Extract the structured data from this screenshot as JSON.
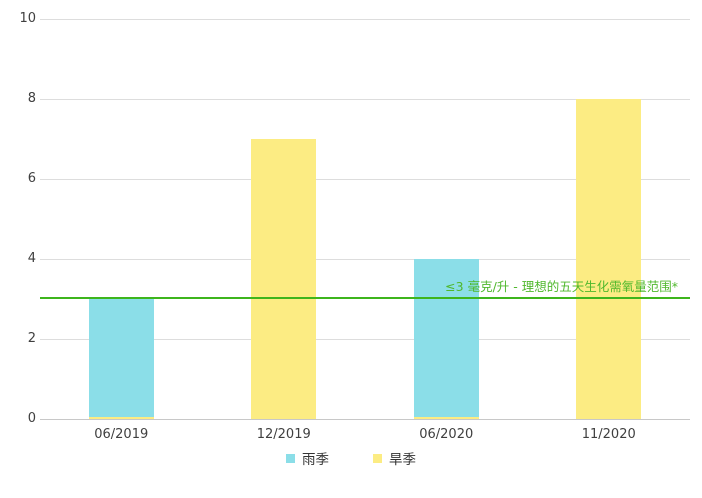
{
  "chart_data": {
    "type": "bar",
    "title": "",
    "xlabel": "",
    "ylabel": "",
    "categories": [
      "06/2019",
      "12/2019",
      "06/2020",
      "11/2020"
    ],
    "series": [
      {
        "name": "雨季",
        "color": "#8BDEE8",
        "values": [
          3,
          null,
          4,
          null
        ]
      },
      {
        "name": "旱季",
        "color": "#FCEC83",
        "values": [
          null,
          7,
          null,
          8
        ]
      }
    ],
    "ylim": [
      0,
      10
    ],
    "yticks": [
      0,
      2,
      4,
      6,
      8,
      10
    ],
    "grid": true,
    "legend_position": "bottom",
    "reference_line": {
      "value": 3,
      "color": "#3EB51C",
      "label": "≤3 毫克/升 - 理想的五天生化需氧量范围*",
      "label_color": "#4FB82C"
    }
  },
  "colors": {
    "background": "#FFFFFF",
    "grid": "#DDDDDD",
    "baseline": "#C8C8C8",
    "tick_text": "#3F3F3F",
    "axis_label_text": "#3F3F3F"
  }
}
